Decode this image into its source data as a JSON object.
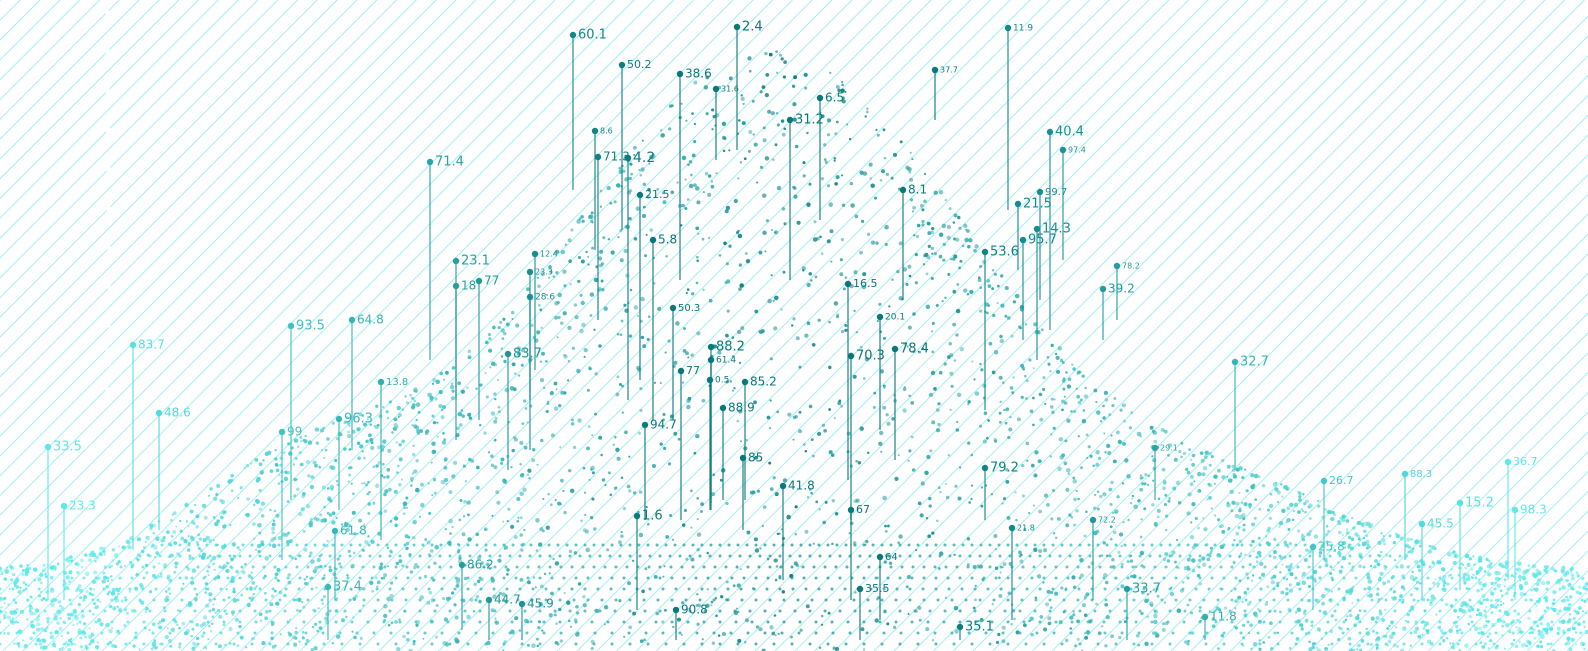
{
  "pins": [
    "60.1",
    "2.4",
    "50.2",
    "38.6",
    "11.9",
    "37.7",
    "31.6",
    "6.5",
    "31.2",
    "71.4",
    "71.3",
    "4.2",
    "40.4",
    "8.6",
    "97.4",
    "99.7",
    "21.5",
    "8.1",
    "21.5",
    "14.3",
    "95.7",
    "53.6",
    "5.8",
    "23.1",
    "18",
    "77",
    "12.4",
    "23.3",
    "28.6",
    "16.5",
    "20.1",
    "39.2",
    "78.2",
    "50.3",
    "88.2",
    "61.4",
    "93.5",
    "64.8",
    "70.3",
    "78.4",
    "83.7",
    "83.7",
    "32.7",
    "77",
    "0.5",
    "85.2",
    "13.8",
    "88.9",
    "48.6",
    "96.3",
    "94.7",
    "99",
    "33.5",
    "85",
    "79.2",
    "41.8",
    "26.7",
    "36.7",
    "88.3",
    "98.3",
    "15.2",
    "23.3",
    "61.8",
    "1.6",
    "67",
    "25.8",
    "45.5",
    "86.2",
    "64",
    "37.4",
    "33.7",
    "35.5",
    "44.7",
    "45.9",
    "90.8",
    "11.8",
    "35.1",
    "29.1",
    "72.2",
    "21.8"
  ]
}
